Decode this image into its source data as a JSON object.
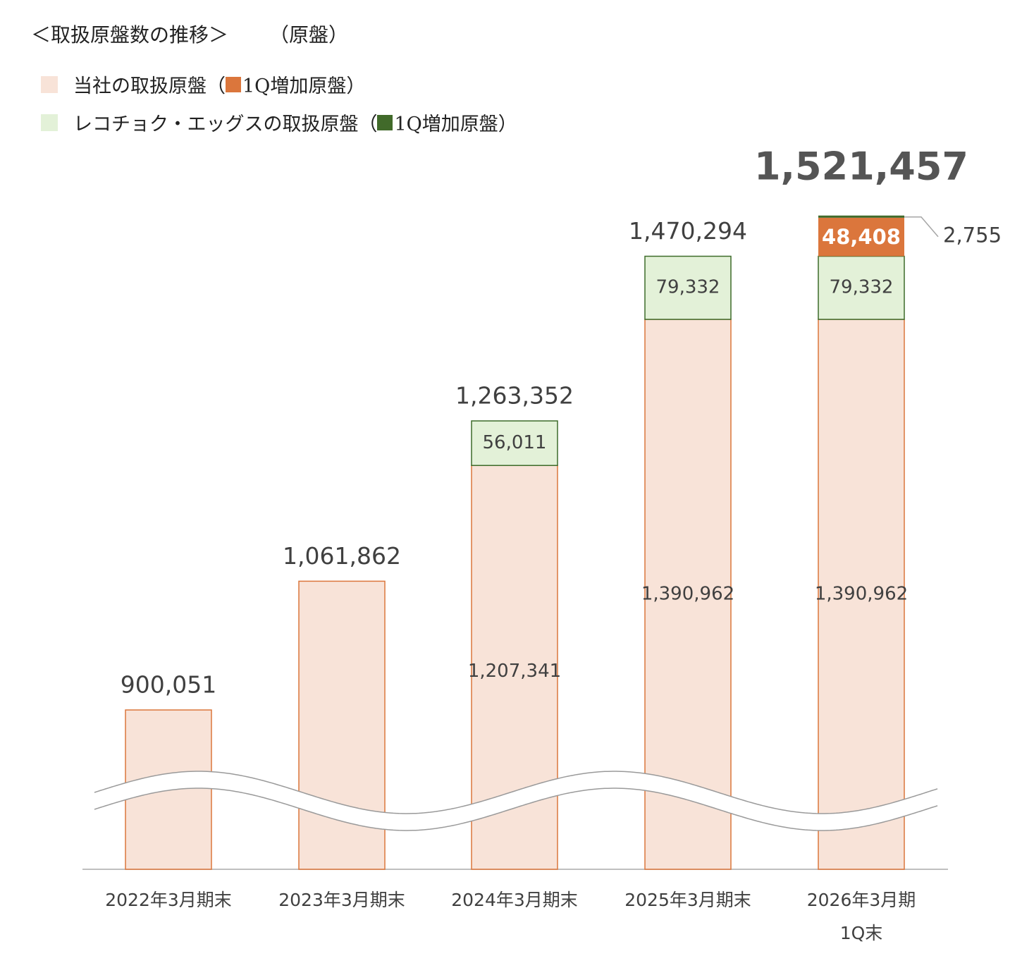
{
  "header": {
    "title": "＜取扱原盤数の推移＞",
    "unit": "（原盤）"
  },
  "legend": [
    {
      "label": "当社の取扱原盤（",
      "color": "#F8E3D8",
      "sub_color": "#DB763C",
      "sub_label": "1Q増加原盤）"
    },
    {
      "label": "レコチョク・エッグスの取扱原盤（",
      "color": "#E3F1D8",
      "sub_color": "#416A2A",
      "sub_label": "1Q増加原盤）"
    }
  ],
  "colors": {
    "own": "#F8E3D8",
    "own_border": "#DB763C",
    "egg": "#E3F1D8",
    "egg_border": "#3D6B2A",
    "own_q1": "#DB763C",
    "egg_q1": "#416A2A"
  },
  "chart_data": {
    "type": "bar",
    "stacked": true,
    "axis_break": true,
    "categories": [
      "2022年3月期末",
      "2023年3月期末",
      "2024年3月期末",
      "2025年3月期末",
      "2026年3月期\n1Q末"
    ],
    "series": [
      {
        "name": "当社の取扱原盤",
        "values": [
          900051,
          1061862,
          1207341,
          1390962,
          1390962
        ]
      },
      {
        "name": "レコチョク・エッグスの取扱原盤",
        "values": [
          0,
          0,
          56011,
          79332,
          79332
        ]
      },
      {
        "name": "1Q増加原盤",
        "values": [
          0,
          0,
          0,
          0,
          48408
        ]
      },
      {
        "name": "1Q増加原盤",
        "values": [
          0,
          0,
          0,
          0,
          2755
        ]
      }
    ],
    "segment_labels": [
      [
        "",
        "",
        "1,207,341",
        "1,390,962",
        "1,390,962"
      ],
      [
        "",
        "",
        "56,011",
        "79,332",
        "79,332"
      ],
      [
        "",
        "",
        "",
        "",
        "48,408"
      ],
      [
        "",
        "",
        "",
        "",
        "2,755"
      ]
    ],
    "totals": [
      900051,
      1061862,
      1263352,
      1470294,
      1521457
    ],
    "total_labels": [
      "900,051",
      "1,061,862",
      "1,263,352",
      "1,470,294",
      "1,521,457"
    ],
    "highlight_total_index": 4
  }
}
